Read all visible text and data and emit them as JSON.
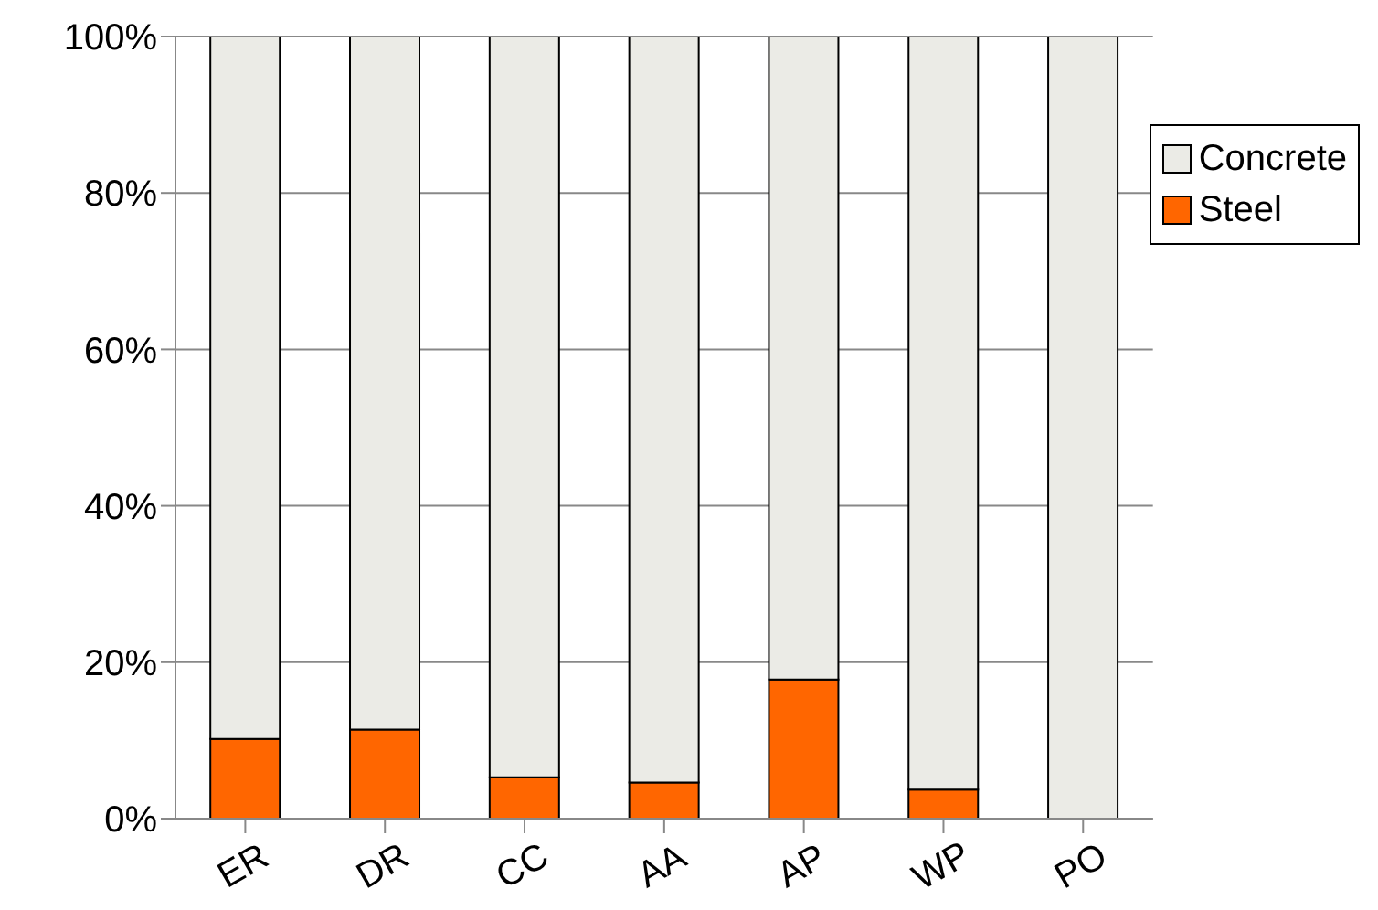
{
  "chart_data": {
    "type": "bar",
    "stacked": true,
    "categories": [
      "ER",
      "DR",
      "CC",
      "AA",
      "AP",
      "WP",
      "PO"
    ],
    "series": [
      {
        "name": "Steel",
        "color": "#ff6600",
        "values": [
          10.2,
          11.4,
          5.3,
          4.6,
          17.8,
          3.7,
          0
        ]
      },
      {
        "name": "Concrete",
        "color": "#ebebe6",
        "values": [
          89.8,
          88.6,
          94.7,
          95.4,
          82.2,
          96.3,
          100
        ]
      }
    ],
    "ylim": [
      0,
      100
    ],
    "yticks": [
      {
        "value": 0,
        "label": "0%"
      },
      {
        "value": 20,
        "label": "20%"
      },
      {
        "value": 40,
        "label": "40%"
      },
      {
        "value": 60,
        "label": "60%"
      },
      {
        "value": 80,
        "label": "80%"
      },
      {
        "value": 100,
        "label": "100%"
      }
    ],
    "grid": "y",
    "legend": "top right"
  }
}
